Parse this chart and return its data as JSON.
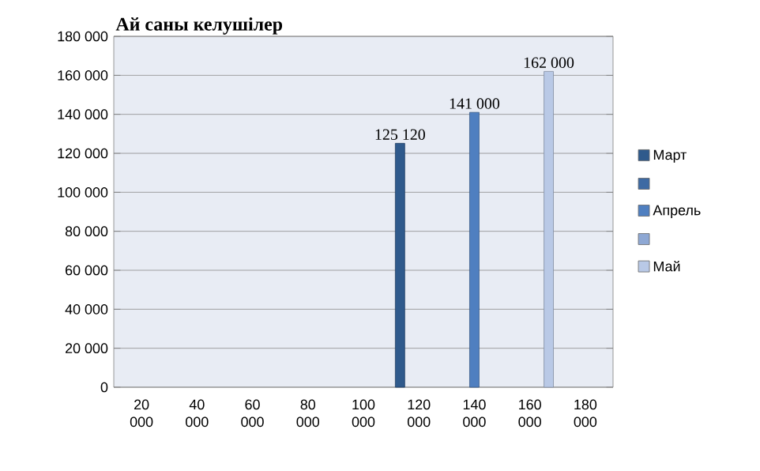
{
  "chart_data": {
    "type": "bar",
    "title": "Ай саны келушілер",
    "categories": [
      "20 000",
      "40 000",
      "60 000",
      "80 000",
      "100 000",
      "120 000",
      "140 000",
      "160 000",
      "180 000"
    ],
    "series": [
      {
        "name": "Март",
        "color": "#2f5a8c",
        "values": [
          null,
          null,
          null,
          null,
          null,
          125120,
          null,
          null,
          null
        ],
        "value_labels": [
          null,
          null,
          null,
          null,
          null,
          "125 120",
          null,
          null,
          null
        ]
      },
      {
        "color": "#3e6aa3",
        "values": [
          null,
          null,
          null,
          null,
          null,
          null,
          null,
          null,
          null
        ]
      },
      {
        "name": "Апрель",
        "color": "#4f7fc0",
        "values": [
          null,
          null,
          null,
          null,
          null,
          null,
          141000,
          null,
          null
        ],
        "value_labels": [
          null,
          null,
          null,
          null,
          null,
          null,
          "141 000",
          null,
          null
        ]
      },
      {
        "color": "#8ea8d4",
        "values": [
          null,
          null,
          null,
          null,
          null,
          null,
          null,
          null,
          null
        ]
      },
      {
        "name": "Май",
        "color": "#b9c9e6",
        "values": [
          null,
          null,
          null,
          null,
          null,
          null,
          null,
          162000,
          null
        ],
        "value_labels": [
          null,
          null,
          null,
          null,
          null,
          null,
          null,
          "162 000",
          null
        ]
      }
    ],
    "ylim": [
      0,
      180000
    ],
    "yticks": [
      0,
      {
        "value": 20000,
        "label": "20 000"
      },
      {
        "value": 40000,
        "label": "40 000"
      },
      {
        "value": 60000,
        "label": "60 000"
      },
      {
        "value": 80000,
        "label": "80 000"
      },
      {
        "value": 100000,
        "label": "100 000"
      },
      {
        "value": 120000,
        "label": "120 000"
      },
      {
        "value": 140000,
        "label": "140 000"
      },
      {
        "value": 160000,
        "label": "160 000"
      },
      {
        "value": 180000,
        "label": "180 000"
      }
    ],
    "grid": "y",
    "legend": "right"
  }
}
